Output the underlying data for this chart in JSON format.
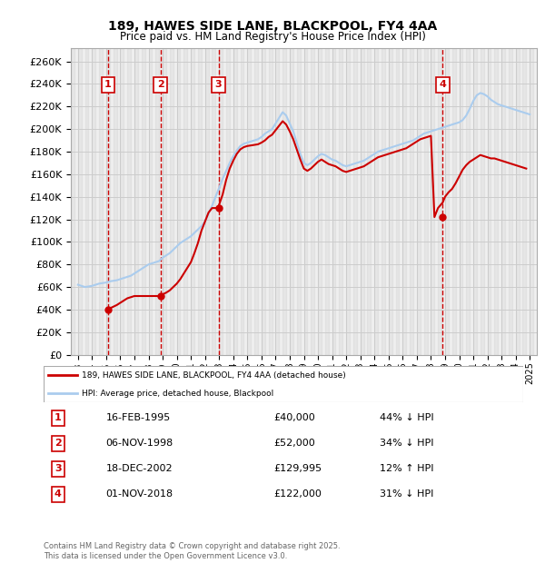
{
  "title": "189, HAWES SIDE LANE, BLACKPOOL, FY4 4AA",
  "subtitle": "Price paid vs. HM Land Registry's House Price Index (HPI)",
  "ylabel_prefix": "£",
  "yticks": [
    0,
    20000,
    40000,
    60000,
    80000,
    100000,
    120000,
    140000,
    160000,
    180000,
    200000,
    220000,
    240000,
    260000
  ],
  "ylim": [
    0,
    272000
  ],
  "xlim_start": 1992.5,
  "xlim_end": 2025.5,
  "transactions": [
    {
      "num": 1,
      "date": "16-FEB-1995",
      "price": 40000,
      "pct": "44%",
      "dir": "↓",
      "x": 1995.12
    },
    {
      "num": 2,
      "date": "06-NOV-1998",
      "price": 52000,
      "pct": "34%",
      "dir": "↓",
      "x": 1998.84
    },
    {
      "num": 3,
      "date": "18-DEC-2002",
      "price": 129995,
      "pct": "12%",
      "dir": "↑",
      "x": 2002.96
    },
    {
      "num": 4,
      "date": "01-NOV-2018",
      "price": 122000,
      "pct": "31%",
      "dir": "↓",
      "x": 2018.84
    }
  ],
  "hpi_line_color": "#aaccee",
  "price_line_color": "#cc0000",
  "marker_color": "#cc0000",
  "vline_color": "#cc0000",
  "grid_color": "#cccccc",
  "background_hatch_color": "#e8e8e8",
  "legend_label_price": "189, HAWES SIDE LANE, BLACKPOOL, FY4 4AA (detached house)",
  "legend_label_hpi": "HPI: Average price, detached house, Blackpool",
  "footer": "Contains HM Land Registry data © Crown copyright and database right 2025.\nThis data is licensed under the Open Government Licence v3.0.",
  "hpi_data_x": [
    1993.0,
    1993.25,
    1993.5,
    1993.75,
    1994.0,
    1994.25,
    1994.5,
    1994.75,
    1995.0,
    1995.25,
    1995.5,
    1995.75,
    1996.0,
    1996.25,
    1996.5,
    1996.75,
    1997.0,
    1997.25,
    1997.5,
    1997.75,
    1998.0,
    1998.25,
    1998.5,
    1998.75,
    1999.0,
    1999.25,
    1999.5,
    1999.75,
    2000.0,
    2000.25,
    2000.5,
    2000.75,
    2001.0,
    2001.25,
    2001.5,
    2001.75,
    2002.0,
    2002.25,
    2002.5,
    2002.75,
    2003.0,
    2003.25,
    2003.5,
    2003.75,
    2004.0,
    2004.25,
    2004.5,
    2004.75,
    2005.0,
    2005.25,
    2005.5,
    2005.75,
    2006.0,
    2006.25,
    2006.5,
    2006.75,
    2007.0,
    2007.25,
    2007.5,
    2007.75,
    2008.0,
    2008.25,
    2008.5,
    2008.75,
    2009.0,
    2009.25,
    2009.5,
    2009.75,
    2010.0,
    2010.25,
    2010.5,
    2010.75,
    2011.0,
    2011.25,
    2011.5,
    2011.75,
    2012.0,
    2012.25,
    2012.5,
    2012.75,
    2013.0,
    2013.25,
    2013.5,
    2013.75,
    2014.0,
    2014.25,
    2014.5,
    2014.75,
    2015.0,
    2015.25,
    2015.5,
    2015.75,
    2016.0,
    2016.25,
    2016.5,
    2016.75,
    2017.0,
    2017.25,
    2017.5,
    2017.75,
    2018.0,
    2018.25,
    2018.5,
    2018.75,
    2019.0,
    2019.25,
    2019.5,
    2019.75,
    2020.0,
    2020.25,
    2020.5,
    2020.75,
    2021.0,
    2021.25,
    2021.5,
    2021.75,
    2022.0,
    2022.25,
    2022.5,
    2022.75,
    2023.0,
    2023.25,
    2023.5,
    2023.75,
    2024.0,
    2024.25,
    2024.5,
    2024.75,
    2025.0
  ],
  "hpi_data_y": [
    62000,
    61000,
    60000,
    60500,
    61000,
    62000,
    63000,
    63500,
    64000,
    65000,
    65500,
    66000,
    67000,
    68000,
    69000,
    70000,
    72000,
    74000,
    76000,
    78000,
    80000,
    81000,
    82000,
    83000,
    86000,
    88000,
    90000,
    93000,
    96000,
    99000,
    101000,
    103000,
    105000,
    108000,
    111000,
    114000,
    118000,
    125000,
    132000,
    140000,
    148000,
    156000,
    163000,
    170000,
    176000,
    181000,
    185000,
    187000,
    188000,
    189000,
    190000,
    191000,
    193000,
    196000,
    198000,
    200000,
    205000,
    210000,
    215000,
    212000,
    205000,
    198000,
    188000,
    178000,
    170000,
    168000,
    170000,
    173000,
    176000,
    178000,
    177000,
    175000,
    173000,
    172000,
    170000,
    168000,
    167000,
    168000,
    169000,
    170000,
    171000,
    172000,
    174000,
    176000,
    178000,
    180000,
    181000,
    182000,
    183000,
    184000,
    185000,
    186000,
    187000,
    188000,
    189000,
    190000,
    192000,
    194000,
    196000,
    197000,
    198000,
    199000,
    200000,
    201000,
    202000,
    203000,
    204000,
    205000,
    206000,
    208000,
    212000,
    218000,
    225000,
    230000,
    232000,
    231000,
    229000,
    226000,
    224000,
    222000,
    221000,
    220000,
    219000,
    218000,
    217000,
    216000,
    215000,
    214000,
    213000
  ],
  "price_data_x": [
    1993.0,
    1993.25,
    1993.5,
    1993.75,
    1994.0,
    1994.25,
    1994.5,
    1994.75,
    1995.12,
    1995.25,
    1995.5,
    1995.75,
    1996.0,
    1996.25,
    1996.5,
    1996.75,
    1997.0,
    1997.25,
    1997.5,
    1997.75,
    1998.0,
    1998.25,
    1998.5,
    1998.84,
    1999.0,
    1999.25,
    1999.5,
    1999.75,
    2000.0,
    2000.25,
    2000.5,
    2000.75,
    2001.0,
    2001.25,
    2001.5,
    2001.75,
    2002.0,
    2002.25,
    2002.5,
    2002.96,
    2003.0,
    2003.25,
    2003.5,
    2003.75,
    2004.0,
    2004.25,
    2004.5,
    2004.75,
    2005.0,
    2005.25,
    2005.5,
    2005.75,
    2006.0,
    2006.25,
    2006.5,
    2006.75,
    2007.0,
    2007.25,
    2007.5,
    2007.75,
    2008.0,
    2008.25,
    2008.5,
    2008.75,
    2009.0,
    2009.25,
    2009.5,
    2009.75,
    2010.0,
    2010.25,
    2010.5,
    2010.75,
    2011.0,
    2011.25,
    2011.5,
    2011.75,
    2012.0,
    2012.25,
    2012.5,
    2012.75,
    2013.0,
    2013.25,
    2013.5,
    2013.75,
    2014.0,
    2014.25,
    2014.5,
    2014.75,
    2015.0,
    2015.25,
    2015.5,
    2015.75,
    2016.0,
    2016.25,
    2016.5,
    2016.75,
    2017.0,
    2017.25,
    2017.5,
    2017.75,
    2018.0,
    2018.25,
    2018.5,
    2018.84,
    2019.0,
    2019.25,
    2019.5,
    2019.75,
    2020.0,
    2020.25,
    2020.5,
    2020.75,
    2021.0,
    2021.25,
    2021.5,
    2021.75,
    2022.0,
    2022.25,
    2022.5,
    2022.75,
    2023.0,
    2023.25,
    2023.5,
    2023.75,
    2024.0,
    2024.25,
    2024.5,
    2024.75,
    2025.0
  ],
  "price_data_y": [
    null,
    null,
    null,
    null,
    null,
    null,
    null,
    null,
    40000,
    41000,
    42500,
    44000,
    46000,
    48000,
    50000,
    51000,
    52000,
    52000,
    52000,
    52000,
    52000,
    52000,
    52000,
    52000,
    53500,
    55000,
    57000,
    60000,
    63000,
    67000,
    72000,
    77000,
    82000,
    90000,
    99000,
    110000,
    118000,
    126000,
    130000,
    129995,
    133000,
    142000,
    155000,
    165000,
    172000,
    178000,
    182000,
    184000,
    185000,
    185500,
    186000,
    186500,
    188000,
    190000,
    193000,
    195000,
    199000,
    203000,
    207000,
    204000,
    198000,
    191000,
    182000,
    173000,
    165000,
    163000,
    165000,
    168000,
    171000,
    173000,
    171000,
    169000,
    168000,
    167000,
    165000,
    163000,
    162000,
    163000,
    164000,
    165000,
    166000,
    167000,
    169000,
    171000,
    173000,
    175000,
    176000,
    177000,
    178000,
    179000,
    180000,
    181000,
    182000,
    183000,
    185000,
    187000,
    189000,
    191000,
    192000,
    193000,
    194000,
    122000,
    130000,
    135000,
    140000,
    144000,
    147000,
    152000,
    158000,
    164000,
    168000,
    171000,
    173000,
    175000,
    177000,
    176000,
    175000,
    174000,
    174000,
    173000,
    172000,
    171000,
    170000,
    169000,
    168000,
    167000,
    166000,
    165000
  ]
}
